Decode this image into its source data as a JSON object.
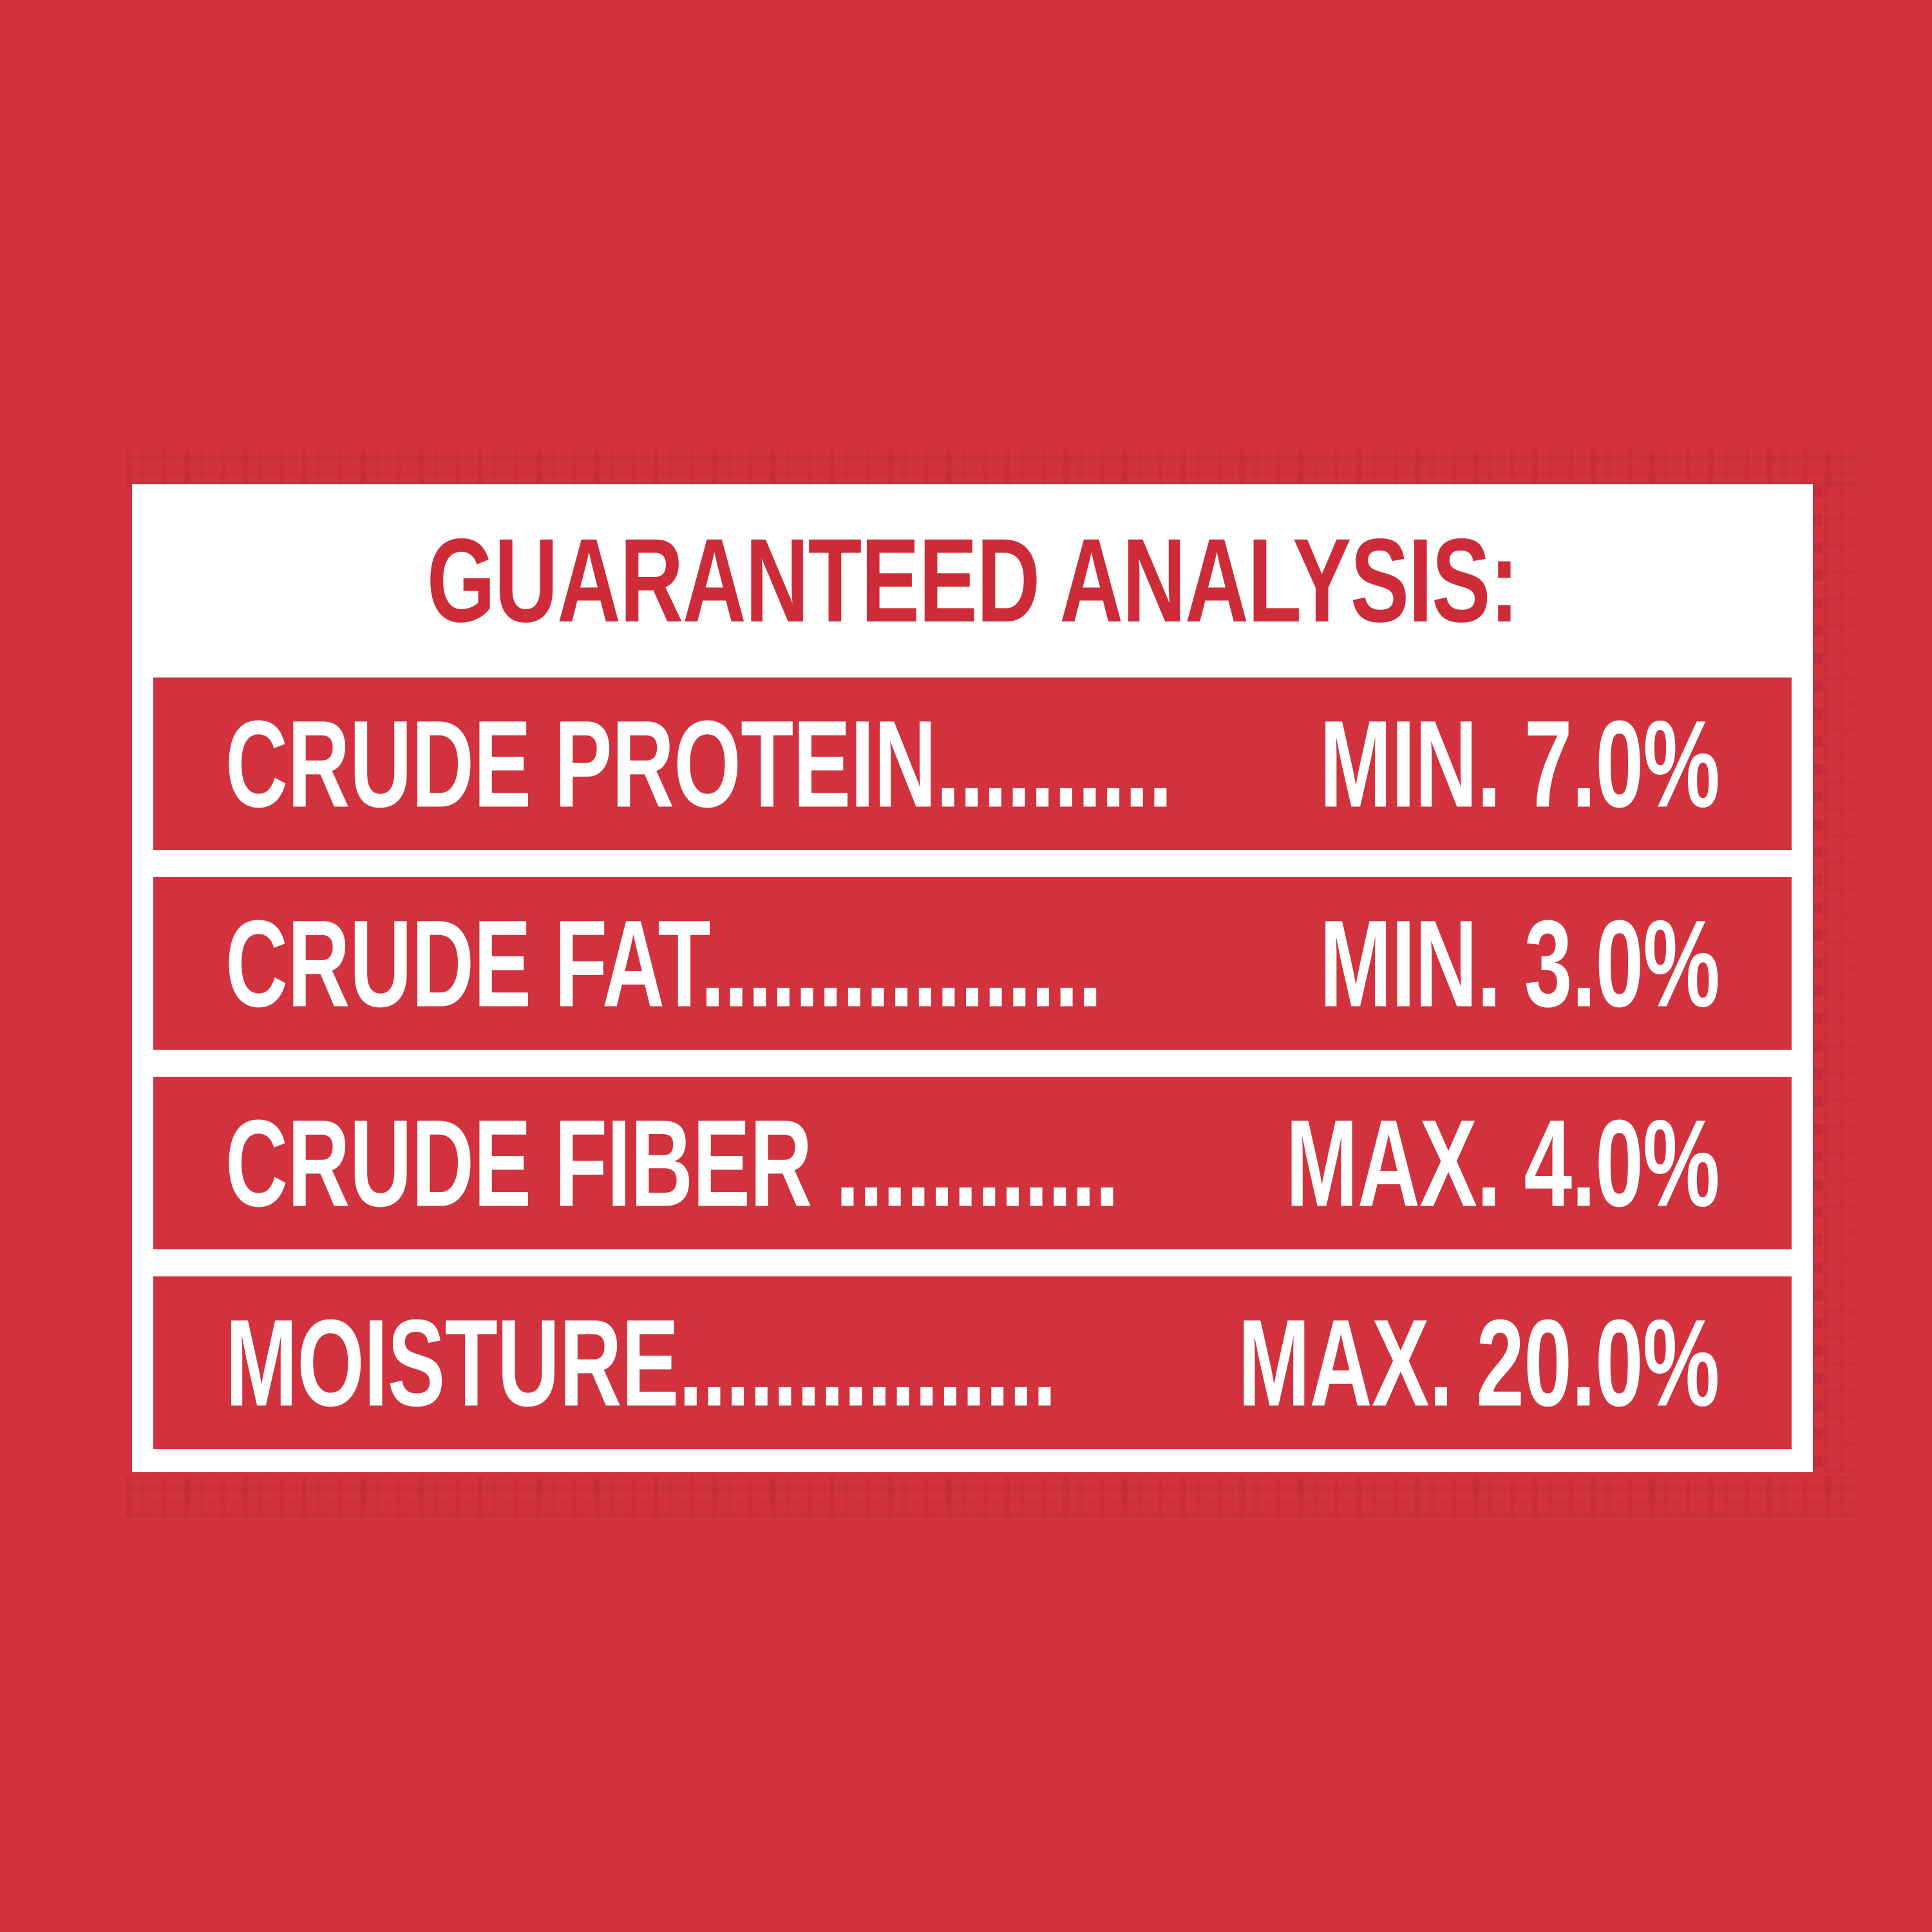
{
  "panel": {
    "title": "GUARANTEED ANALYSIS:"
  },
  "rows": [
    {
      "label": "CRUDE PROTEIN..........",
      "value": "MIN. 7.0%"
    },
    {
      "label": "CRUDE FAT.................",
      "value": "MIN. 3.0%"
    },
    {
      "label": "CRUDE FIBER ............",
      "value": "MAX. 4.0%"
    },
    {
      "label": "MOISTURE................",
      "value": "MAX. 20.0%"
    }
  ],
  "colors": {
    "background_red": "#D2323E",
    "bar_red": "#D2323E",
    "panel_white": "#FFFFFF",
    "title_red": "#CE2B38",
    "row_text_white": "#FFFFFF"
  }
}
